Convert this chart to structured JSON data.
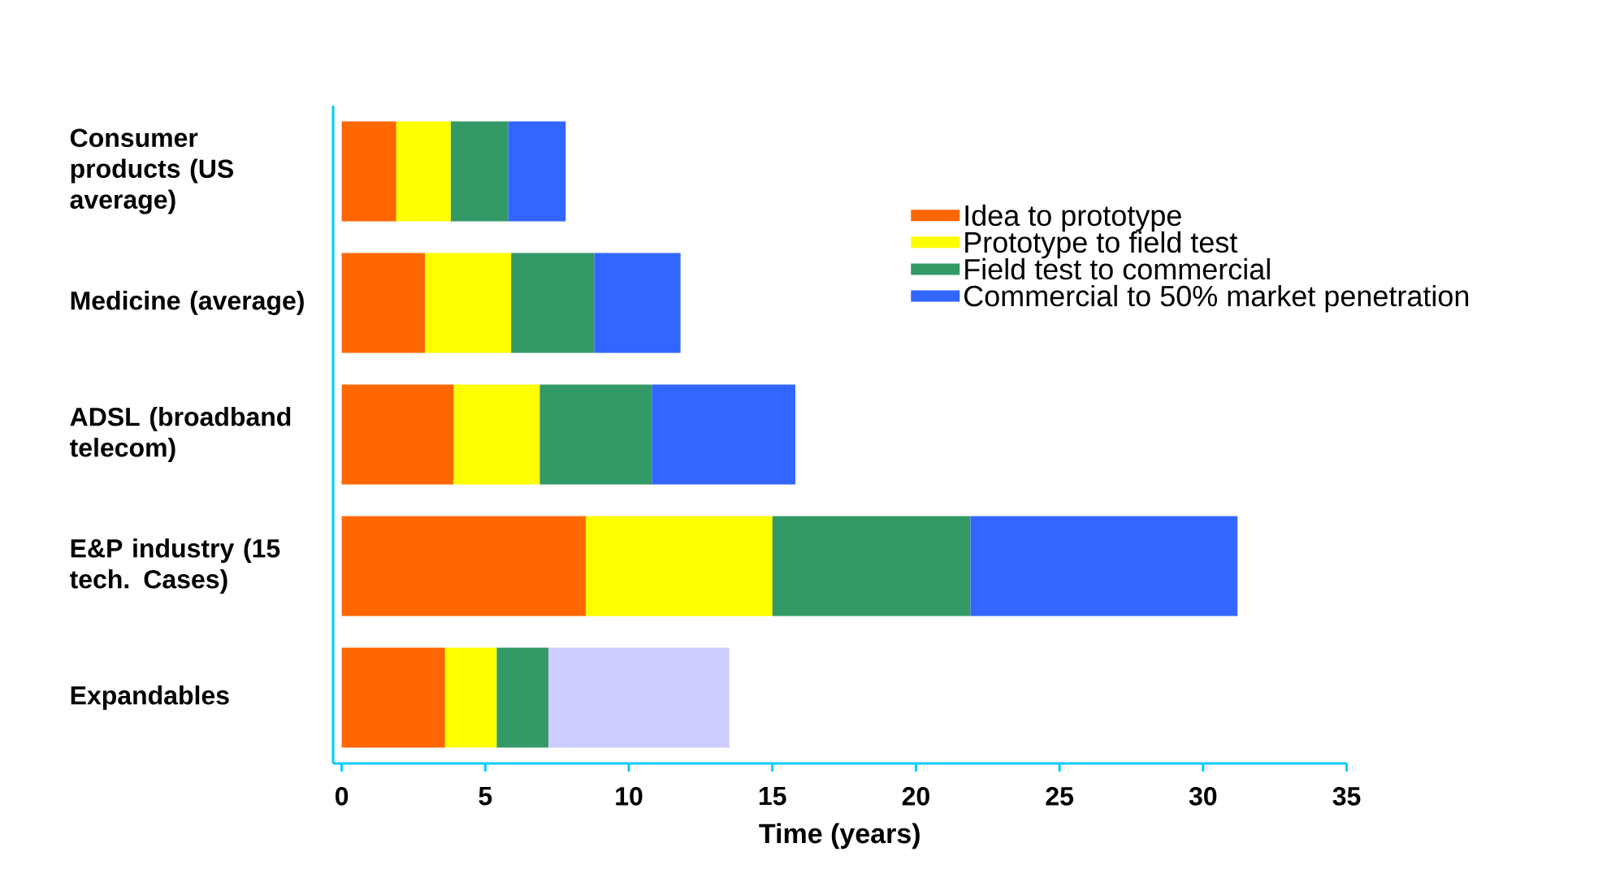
{
  "chart_data": {
    "type": "bar",
    "orientation": "horizontal",
    "stacked": true,
    "categories": [
      "Consumer products (US average)",
      "Medicine (average)",
      "ADSL (broadband telecom)",
      "E&P industry (15 tech. Cases)",
      "Expandables"
    ],
    "series": [
      {
        "name": "Idea to prototype",
        "color": "#ff6600",
        "values": [
          1.9,
          2.9,
          3.9,
          8.5,
          3.6
        ]
      },
      {
        "name": "Prototype to field test",
        "color": "#ffff00",
        "values": [
          1.9,
          3.0,
          3.0,
          6.5,
          1.8
        ]
      },
      {
        "name": "Field test to commercial",
        "color": "#339966",
        "values": [
          2.0,
          2.9,
          3.9,
          6.9,
          1.8
        ]
      },
      {
        "name": "Commercial to 50% market penetration",
        "color": "#3366ff",
        "colors": [
          "#3366ff",
          "#3366ff",
          "#3366ff",
          "#3366ff",
          "#ccccff"
        ],
        "values": [
          2.0,
          3.0,
          5.0,
          9.3,
          6.3
        ]
      }
    ],
    "xlabel": "Time (years)",
    "xlim": [
      -0.3,
      35
    ],
    "xticks": [
      0,
      5,
      10,
      15,
      20,
      25,
      30,
      35
    ],
    "legend": "top right",
    "grid": false
  }
}
